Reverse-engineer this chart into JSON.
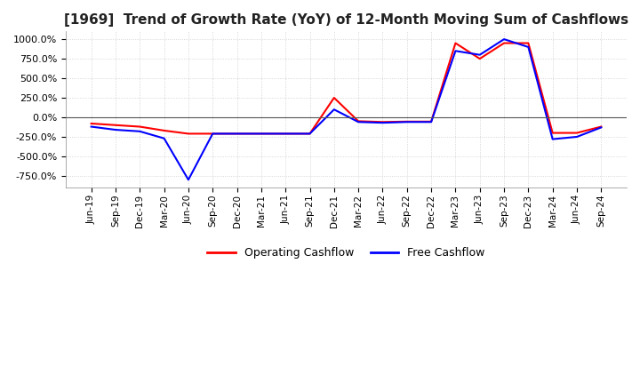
{
  "title": "[1969]  Trend of Growth Rate (YoY) of 12-Month Moving Sum of Cashflows",
  "title_fontsize": 11,
  "ylim": [
    -900,
    1100
  ],
  "yticks": [
    -750,
    -500,
    -250,
    0,
    250,
    500,
    750,
    1000
  ],
  "background_color": "#ffffff",
  "plot_bg_color": "#ffffff",
  "grid_color": "#cccccc",
  "legend_labels": [
    "Operating Cashflow",
    "Free Cashflow"
  ],
  "line_colors": [
    "#ff0000",
    "#0000ff"
  ],
  "x_labels": [
    "Jun-19",
    "Sep-19",
    "Dec-19",
    "Mar-20",
    "Jun-20",
    "Sep-20",
    "Dec-20",
    "Mar-21",
    "Jun-21",
    "Sep-21",
    "Dec-21",
    "Mar-22",
    "Jun-22",
    "Sep-22",
    "Dec-22",
    "Mar-23",
    "Jun-23",
    "Sep-23",
    "Dec-23",
    "Mar-24",
    "Jun-24",
    "Sep-24"
  ],
  "operating_cashflow": [
    -80,
    -100,
    -120,
    -170,
    -210,
    -210,
    -210,
    -210,
    -210,
    -210,
    250,
    -50,
    -60,
    -55,
    -55,
    950,
    750,
    950,
    950,
    -200,
    -200,
    -120
  ],
  "free_cashflow": [
    -120,
    -160,
    -180,
    -270,
    -800,
    -210,
    -210,
    -210,
    -210,
    -210,
    100,
    -60,
    -70,
    -60,
    -60,
    850,
    800,
    1000,
    900,
    -280,
    -250,
    -130
  ]
}
